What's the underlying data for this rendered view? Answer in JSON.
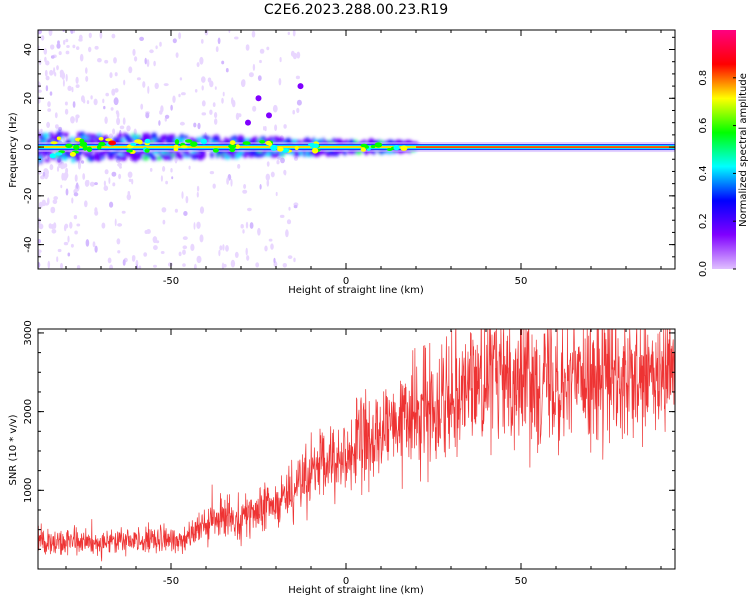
{
  "title": "C2E6.2023.288.00.23.R19",
  "chart_data": [
    {
      "type": "heatmap",
      "name": "spectrogram",
      "xlabel": "Height of straight line (km)",
      "ylabel": "Frequency (Hz)",
      "xlim": [
        -88,
        94
      ],
      "ylim": [
        -50,
        48
      ],
      "xticks": [
        -50,
        0,
        50
      ],
      "yticks": [
        -40,
        -20,
        0,
        20,
        40
      ],
      "description_ridge": {
        "center_hz": 0,
        "x_range": [
          -88,
          94
        ],
        "clean_from_km": 20
      },
      "colorbar": {
        "label": "Normalized spectral amplitude",
        "range": [
          0.0,
          1.0
        ],
        "ticks": [
          0.0,
          0.2,
          0.4,
          0.6,
          0.8
        ],
        "tick_labels": [
          "0.0",
          "0.2",
          "0.4",
          "0.6",
          "0.8"
        ],
        "colormap": [
          "#e0c0ff",
          "#8000ff",
          "#0000ff",
          "#00ffff",
          "#00ff00",
          "#ffff00",
          "#ff0000",
          "#ff0080"
        ]
      }
    },
    {
      "type": "line",
      "name": "snr",
      "xlabel": "Height of straight line (km)",
      "ylabel": "SNR (10 * v/v)",
      "xlim": [
        -88,
        94
      ],
      "ylim": [
        0,
        3050
      ],
      "xticks": [
        -50,
        0,
        50
      ],
      "yticks": [
        1000,
        2000,
        3000
      ],
      "color": "#ee3333",
      "series": [
        {
          "name": "SNR",
          "x": [
            -88,
            -80,
            -70,
            -60,
            -50,
            -45,
            -40,
            -35,
            -30,
            -25,
            -20,
            -15,
            -10,
            -5,
            0,
            5,
            10,
            15,
            20,
            25,
            30,
            35,
            40,
            45,
            50,
            55,
            60,
            65,
            70,
            75,
            80,
            85,
            90,
            94
          ],
          "values": [
            380,
            330,
            340,
            370,
            360,
            420,
            540,
            660,
            680,
            700,
            850,
            1000,
            1200,
            1340,
            1450,
            1580,
            1700,
            1820,
            1960,
            2120,
            2280,
            2390,
            2430,
            2460,
            2450,
            2440,
            2400,
            2430,
            2420,
            2380,
            2370,
            2330,
            2420,
            2500
          ]
        }
      ]
    }
  ]
}
